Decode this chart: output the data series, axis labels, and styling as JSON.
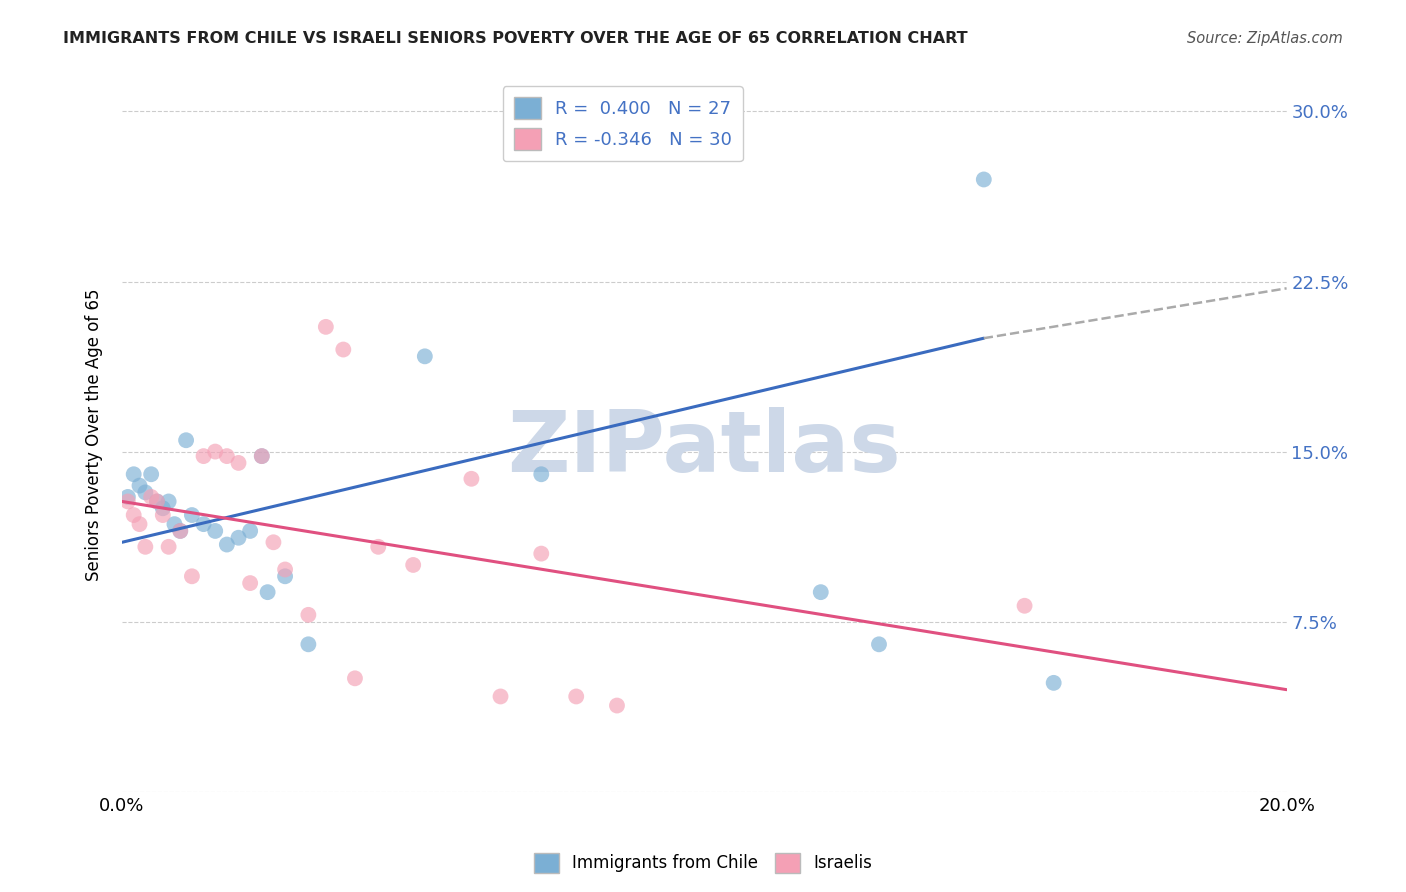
{
  "title": "IMMIGRANTS FROM CHILE VS ISRAELI SENIORS POVERTY OVER THE AGE OF 65 CORRELATION CHART",
  "source": "Source: ZipAtlas.com",
  "ylabel": "Seniors Poverty Over the Age of 65",
  "xlim": [
    0.0,
    0.2
  ],
  "ylim": [
    0.0,
    0.315
  ],
  "yticks": [
    0.0,
    0.075,
    0.15,
    0.225,
    0.3
  ],
  "ytick_labels": [
    "",
    "7.5%",
    "15.0%",
    "22.5%",
    "30.0%"
  ],
  "xticks": [
    0.0,
    0.05,
    0.1,
    0.15,
    0.2
  ],
  "xtick_labels": [
    "0.0%",
    "",
    "",
    "",
    "20.0%"
  ],
  "legend_entries": [
    {
      "label": "R =  0.400   N = 27",
      "color": "#a8c4e0"
    },
    {
      "label": "R = -0.346   N = 30",
      "color": "#f4a7b9"
    }
  ],
  "blue_scatter_x": [
    0.001,
    0.002,
    0.003,
    0.004,
    0.005,
    0.006,
    0.007,
    0.008,
    0.009,
    0.01,
    0.011,
    0.012,
    0.014,
    0.016,
    0.018,
    0.02,
    0.022,
    0.024,
    0.025,
    0.028,
    0.032,
    0.052,
    0.072,
    0.12,
    0.13,
    0.148,
    0.16
  ],
  "blue_scatter_y": [
    0.13,
    0.14,
    0.135,
    0.132,
    0.14,
    0.128,
    0.125,
    0.128,
    0.118,
    0.115,
    0.155,
    0.122,
    0.118,
    0.115,
    0.109,
    0.112,
    0.115,
    0.148,
    0.088,
    0.095,
    0.065,
    0.192,
    0.14,
    0.088,
    0.065,
    0.27,
    0.048
  ],
  "pink_scatter_x": [
    0.001,
    0.002,
    0.003,
    0.004,
    0.005,
    0.006,
    0.007,
    0.008,
    0.01,
    0.012,
    0.014,
    0.016,
    0.018,
    0.02,
    0.022,
    0.024,
    0.026,
    0.028,
    0.032,
    0.035,
    0.038,
    0.04,
    0.044,
    0.05,
    0.06,
    0.065,
    0.072,
    0.078,
    0.085,
    0.155
  ],
  "pink_scatter_y": [
    0.128,
    0.122,
    0.118,
    0.108,
    0.13,
    0.128,
    0.122,
    0.108,
    0.115,
    0.095,
    0.148,
    0.15,
    0.148,
    0.145,
    0.092,
    0.148,
    0.11,
    0.098,
    0.078,
    0.205,
    0.195,
    0.05,
    0.108,
    0.1,
    0.138,
    0.042,
    0.105,
    0.042,
    0.038,
    0.082
  ],
  "blue_line_x0": 0.0,
  "blue_line_y0": 0.11,
  "blue_line_x1": 0.148,
  "blue_line_y1": 0.2,
  "dash_line_x0": 0.148,
  "dash_line_y0": 0.2,
  "dash_line_x1": 0.2,
  "dash_line_y1": 0.222,
  "pink_line_x0": 0.0,
  "pink_line_y0": 0.128,
  "pink_line_x1": 0.2,
  "pink_line_y1": 0.045,
  "scatter_size": 130,
  "scatter_alpha": 0.65,
  "blue_color": "#7bafd4",
  "pink_color": "#f4a0b5",
  "blue_line_color": "#3a6bbf",
  "pink_line_color": "#e05080",
  "watermark": "ZIPatlas",
  "watermark_color": "#cdd8e8",
  "background_color": "#ffffff",
  "grid_color": "#cccccc"
}
